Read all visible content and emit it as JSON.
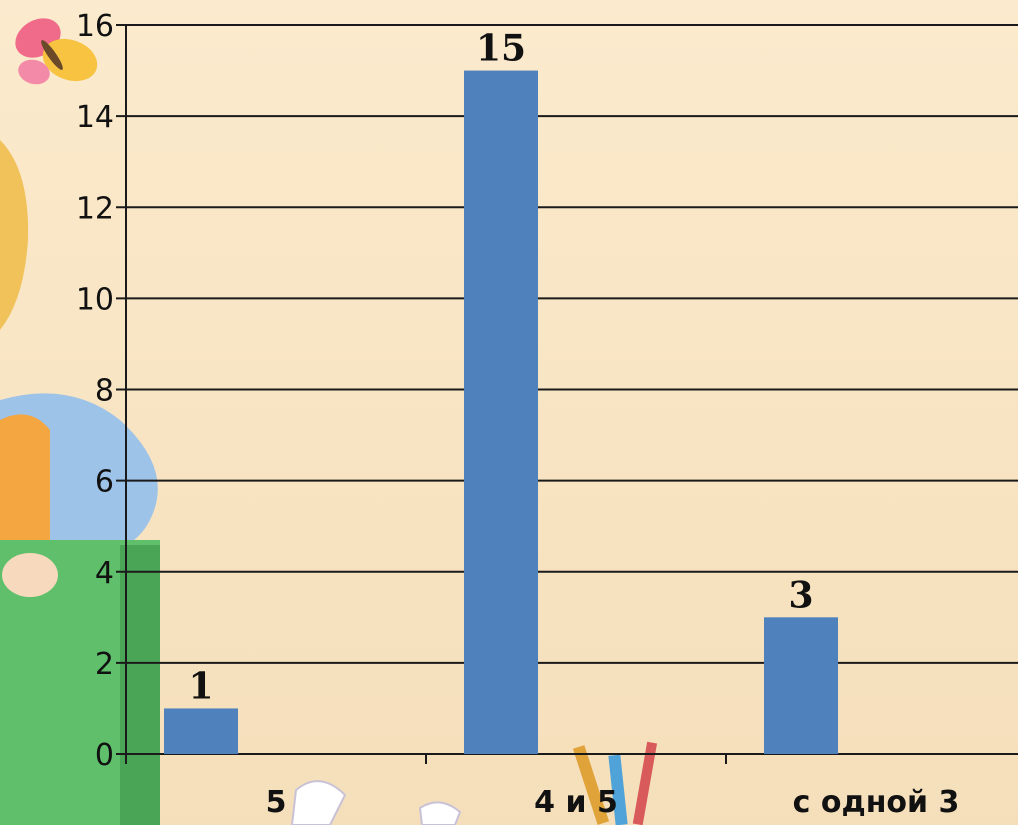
{
  "chart_data": {
    "type": "bar",
    "categories": [
      "5",
      "4 и 5",
      "с одной 3"
    ],
    "values": [
      1,
      15,
      3
    ],
    "data_labels": [
      "1",
      "15",
      "3"
    ],
    "ylim": [
      0,
      16
    ],
    "yticks": [
      0,
      2,
      4,
      6,
      8,
      10,
      12,
      14,
      16
    ],
    "grid": true,
    "bar_color": "#4f81bd",
    "title": "",
    "xlabel": "",
    "ylabel": ""
  }
}
